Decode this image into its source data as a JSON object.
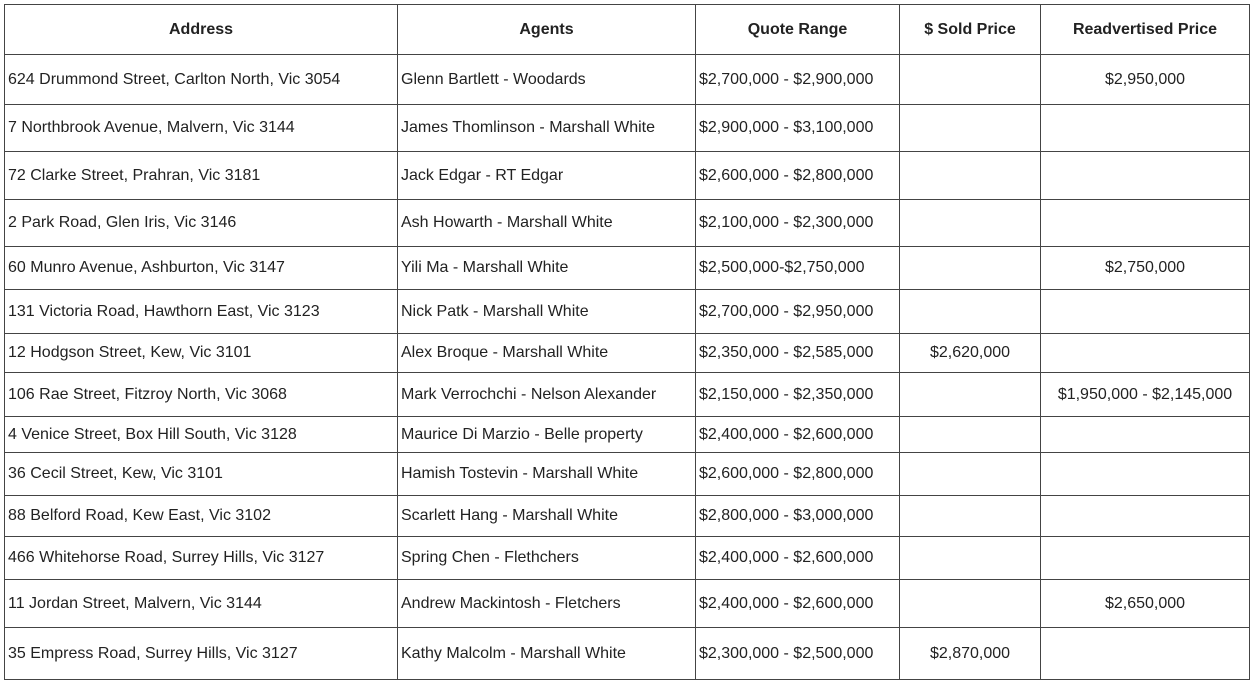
{
  "table": {
    "headers": [
      "Address",
      "Agents",
      "Quote Range",
      "$ Sold Price",
      "Readvertised Price"
    ],
    "rows": [
      [
        "624 Drummond Street, Carlton North, Vic 3054",
        "Glenn Bartlett - Woodards",
        "$2,700,000 - $2,900,000",
        null,
        "$2,950,000"
      ],
      [
        "7 Northbrook Avenue, Malvern, Vic 3144",
        "James Thomlinson - Marshall White",
        "$2,900,000 - $3,100,000",
        null,
        null
      ],
      [
        "72 Clarke Street, Prahran, Vic 3181",
        "Jack Edgar - RT Edgar",
        "$2,600,000 - $2,800,000",
        null,
        null
      ],
      [
        "2 Park Road, Glen Iris, Vic 3146",
        "Ash Howarth - Marshall White",
        "$2,100,000 - $2,300,000",
        null,
        null
      ],
      [
        "60 Munro Avenue, Ashburton, Vic 3147",
        "Yili Ma - Marshall White",
        "$2,500,000-$2,750,000",
        null,
        "$2,750,000"
      ],
      [
        "131 Victoria Road, Hawthorn East, Vic 3123",
        "Nick Patk - Marshall White",
        "$2,700,000 - $2,950,000",
        null,
        null
      ],
      [
        "12 Hodgson Street, Kew, Vic 3101",
        "Alex Broque - Marshall White",
        "$2,350,000 - $2,585,000",
        "$2,620,000",
        null
      ],
      [
        "106 Rae Street, Fitzroy North, Vic 3068",
        "Mark Verrochchi - Nelson Alexander",
        "$2,150,000 - $2,350,000",
        null,
        "$1,950,000 - $2,145,000"
      ],
      [
        "4 Venice Street, Box Hill South, Vic 3128",
        "Maurice Di Marzio - Belle property",
        "$2,400,000 - $2,600,000",
        null,
        null
      ],
      [
        "36 Cecil Street, Kew, Vic 3101",
        "Hamish Tostevin - Marshall White",
        "$2,600,000 - $2,800,000",
        null,
        null
      ],
      [
        "88 Belford Road, Kew East, Vic 3102",
        "Scarlett Hang - Marshall White",
        "$2,800,000 - $3,000,000",
        null,
        null
      ],
      [
        "466 Whitehorse Road, Surrey Hills, Vic 3127",
        "Spring Chen - Flethchers",
        "$2,400,000 - $2,600,000",
        null,
        null
      ],
      [
        "11 Jordan Street, Malvern, Vic 3144",
        "Andrew Mackintosh - Fletchers",
        "$2,400,000 - $2,600,000",
        null,
        "$2,650,000"
      ],
      [
        "35 Empress Road, Surrey Hills, Vic 3127",
        "Kathy Malcolm - Marshall White",
        "$2,300,000 - $2,500,000",
        "$2,870,000",
        null
      ]
    ]
  }
}
